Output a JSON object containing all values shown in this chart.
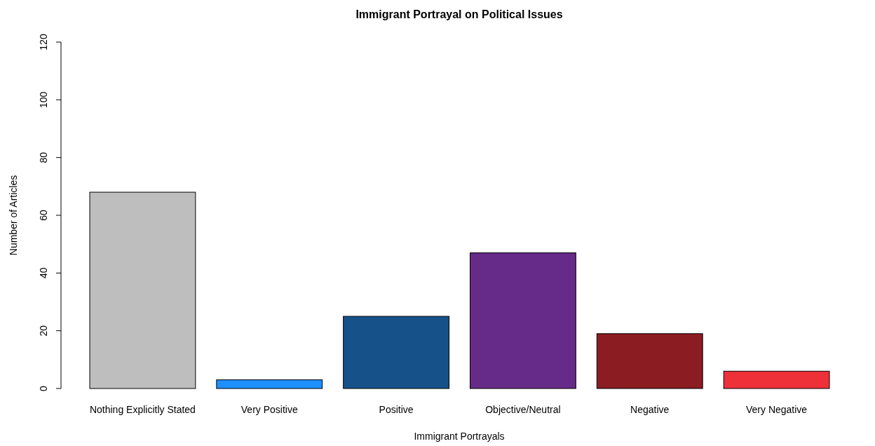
{
  "chart_data": {
    "type": "bar",
    "title": "Immigrant Portrayal on Political Issues",
    "xlabel": "Immigrant Portrayals",
    "ylabel": "Number of Articles",
    "categories": [
      "Nothing Explicitly Stated",
      "Very Positive",
      "Positive",
      "Objective/Neutral",
      "Negative",
      "Very Negative"
    ],
    "values": [
      68,
      3,
      25,
      47,
      19,
      6
    ],
    "colors": [
      "#bebebe",
      "#1e90ff",
      "#165189",
      "#662a88",
      "#8b1c22",
      "#ee3038"
    ],
    "ylim": [
      0,
      120
    ],
    "yticks": [
      0,
      20,
      40,
      60,
      80,
      100,
      120
    ],
    "grid": false
  }
}
